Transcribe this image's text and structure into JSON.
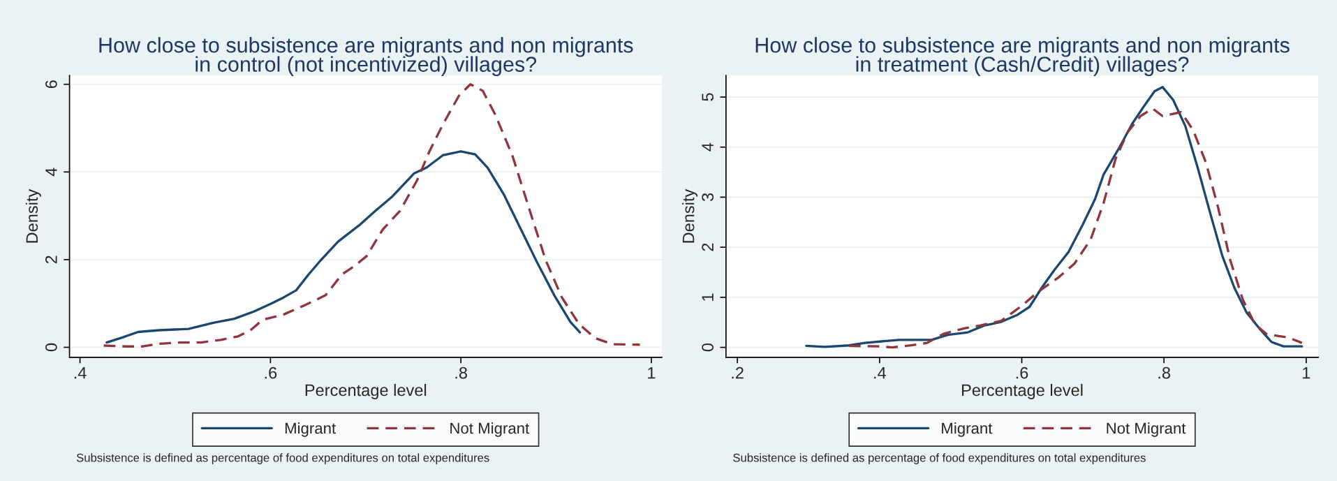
{
  "chart_data": [
    {
      "type": "line",
      "title": "How close to subsistence are migrants and non migrants\nin control (not incentivized) villages?",
      "xlabel": "Percentage level",
      "ylabel": "Density",
      "xlim": [
        0.389,
        1.011
      ],
      "ylim": [
        -0.23,
        6.2
      ],
      "xticks": [
        {
          "value": 0.4,
          "label": ".4"
        },
        {
          "value": 0.6,
          "label": ".6"
        },
        {
          "value": 0.8,
          "label": ".8"
        },
        1
      ],
      "yticks": [
        0,
        2,
        4,
        6
      ],
      "grid": "y",
      "legend": "bottom",
      "annotations": [
        "Subsistence is defined as percentage of food expenditures on total expenditures"
      ],
      "series": [
        {
          "name": "Migrant",
          "color": "#1a476f",
          "line_style": "solid",
          "x": [
            0.428,
            0.444,
            0.461,
            0.483,
            0.514,
            0.54,
            0.562,
            0.583,
            0.601,
            0.614,
            0.627,
            0.64,
            0.653,
            0.671,
            0.693,
            0.71,
            0.728,
            0.751,
            0.764,
            0.781,
            0.8,
            0.815,
            0.828,
            0.845,
            0.863,
            0.88,
            0.898,
            0.915,
            0.925
          ],
          "values": [
            0.11,
            0.22,
            0.35,
            0.39,
            0.42,
            0.56,
            0.65,
            0.82,
            1.0,
            1.14,
            1.3,
            1.66,
            1.99,
            2.41,
            2.78,
            3.11,
            3.44,
            3.97,
            4.1,
            4.38,
            4.47,
            4.4,
            4.1,
            3.49,
            2.69,
            1.94,
            1.19,
            0.58,
            0.34
          ]
        },
        {
          "name": "Not Migrant",
          "color": "#90353b",
          "line_style": "dashed",
          "x": [
            0.425,
            0.448,
            0.466,
            0.483,
            0.505,
            0.527,
            0.548,
            0.566,
            0.579,
            0.592,
            0.614,
            0.636,
            0.658,
            0.675,
            0.688,
            0.701,
            0.718,
            0.736,
            0.754,
            0.767,
            0.781,
            0.798,
            0.81,
            0.823,
            0.836,
            0.854,
            0.871,
            0.889,
            0.906,
            0.924,
            0.941,
            0.959,
            0.988
          ],
          "values": [
            0.04,
            0.02,
            0.02,
            0.08,
            0.11,
            0.11,
            0.17,
            0.25,
            0.39,
            0.63,
            0.75,
            0.96,
            1.19,
            1.66,
            1.85,
            2.08,
            2.69,
            3.11,
            3.81,
            4.47,
            5.08,
            5.74,
            6.0,
            5.85,
            5.31,
            4.38,
            3.21,
            1.99,
            1.14,
            0.53,
            0.21,
            0.07,
            0.06
          ]
        }
      ]
    },
    {
      "type": "line",
      "title": "How close to subsistence are migrants and non migrants\nin treatment (Cash/Credit) villages?",
      "xlabel": "Percentage level",
      "ylabel": "Density",
      "xlim": [
        0.184,
        1.017
      ],
      "ylim": [
        -0.2,
        5.43
      ],
      "xticks": [
        {
          "value": 0.2,
          "label": ".2"
        },
        {
          "value": 0.4,
          "label": ".4"
        },
        {
          "value": 0.6,
          "label": ".6"
        },
        {
          "value": 0.8,
          "label": ".8"
        },
        1
      ],
      "yticks": [
        0,
        1,
        2,
        3,
        4,
        5
      ],
      "grid": "y",
      "legend": "bottom",
      "annotations": [
        "Subsistence is defined as percentage of food expenditures on total expenditures"
      ],
      "series": [
        {
          "name": "Migrant",
          "color": "#1a476f",
          "line_style": "solid",
          "x": [
            0.297,
            0.323,
            0.357,
            0.38,
            0.403,
            0.427,
            0.473,
            0.496,
            0.524,
            0.548,
            0.571,
            0.594,
            0.611,
            0.628,
            0.646,
            0.666,
            0.686,
            0.703,
            0.715,
            0.738,
            0.755,
            0.772,
            0.787,
            0.798,
            0.813,
            0.83,
            0.847,
            0.865,
            0.882,
            0.899,
            0.916,
            0.934,
            0.951,
            0.968,
            0.994
          ],
          "values": [
            0.03,
            0.01,
            0.04,
            0.09,
            0.12,
            0.15,
            0.15,
            0.25,
            0.3,
            0.44,
            0.51,
            0.65,
            0.81,
            1.19,
            1.55,
            1.91,
            2.46,
            2.96,
            3.45,
            4.01,
            4.46,
            4.82,
            5.12,
            5.2,
            4.94,
            4.42,
            3.61,
            2.68,
            1.83,
            1.19,
            0.7,
            0.38,
            0.11,
            0.02,
            0.02
          ]
        },
        {
          "name": "Not Migrant",
          "color": "#90353b",
          "line_style": "dashed",
          "x": [
            0.357,
            0.398,
            0.418,
            0.444,
            0.467,
            0.49,
            0.519,
            0.542,
            0.571,
            0.599,
            0.623,
            0.651,
            0.674,
            0.697,
            0.715,
            0.732,
            0.749,
            0.767,
            0.784,
            0.798,
            0.824,
            0.841,
            0.859,
            0.876,
            0.893,
            0.911,
            0.928,
            0.945,
            0.974,
            0.994
          ],
          "values": [
            0.03,
            0.02,
            0.0,
            0.04,
            0.09,
            0.27,
            0.38,
            0.44,
            0.53,
            0.82,
            1.11,
            1.39,
            1.67,
            2.16,
            2.88,
            3.77,
            4.3,
            4.62,
            4.77,
            4.62,
            4.7,
            4.34,
            3.69,
            2.8,
            1.75,
            0.95,
            0.46,
            0.26,
            0.2,
            0.09
          ]
        }
      ]
    }
  ]
}
